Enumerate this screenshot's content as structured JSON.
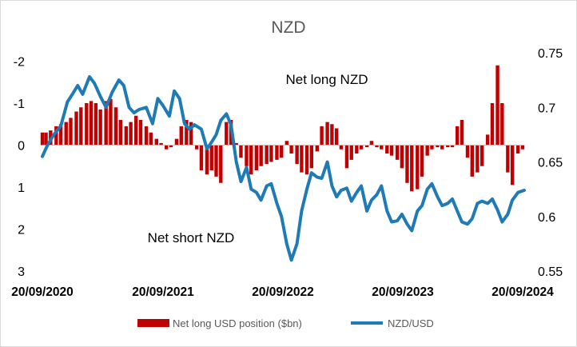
{
  "chart_data": {
    "type": "bar+line",
    "title": "NZD",
    "colors": {
      "bars": "#c00000",
      "line": "#1f7bb5",
      "text": "#000000",
      "title": "#595959"
    },
    "axes": {
      "left": {
        "range": [
          -2.2,
          3.0
        ],
        "inverted": true,
        "ticks": [
          "-2",
          "-1",
          "0",
          "1",
          "2",
          "3"
        ]
      },
      "right": {
        "range": [
          0.55,
          0.75
        ],
        "ticks": [
          "0.75",
          "0.7",
          "0.65",
          "0.6",
          "0.55"
        ]
      },
      "x": {
        "range": [
          "2020-09-20",
          "2024-09-20"
        ],
        "ticks": [
          "20/09/2020",
          "20/09/2021",
          "20/09/2022",
          "20/09/2023",
          "20/09/2024"
        ]
      }
    },
    "grid": false,
    "annotations": [
      "Net long NZD",
      "Net short NZD"
    ],
    "legend": {
      "position": "bottom",
      "entries": [
        {
          "label": "Net long USD position ($bn)",
          "kind": "bar"
        },
        {
          "label": "NZD/USD",
          "kind": "line"
        }
      ]
    },
    "series": [
      {
        "name": "Net long USD position ($bn)",
        "kind": "bar",
        "axis": "left",
        "points": [
          [
            "2020-09-20",
            -0.3
          ],
          [
            "2020-10-01",
            -0.3
          ],
          [
            "2020-10-15",
            -0.35
          ],
          [
            "2020-11-01",
            -0.45
          ],
          [
            "2020-11-15",
            -0.5
          ],
          [
            "2020-12-01",
            -0.55
          ],
          [
            "2020-12-15",
            -0.65
          ],
          [
            "2021-01-01",
            -0.8
          ],
          [
            "2021-01-15",
            -0.9
          ],
          [
            "2021-02-01",
            -1.0
          ],
          [
            "2021-02-15",
            -1.05
          ],
          [
            "2021-03-01",
            -1.0
          ],
          [
            "2021-03-15",
            -0.85
          ],
          [
            "2021-04-01",
            -1.05
          ],
          [
            "2021-04-15",
            -1.1
          ],
          [
            "2021-05-01",
            -0.9
          ],
          [
            "2021-05-15",
            -0.6
          ],
          [
            "2021-06-01",
            -0.45
          ],
          [
            "2021-06-15",
            -0.55
          ],
          [
            "2021-07-01",
            -0.7
          ],
          [
            "2021-07-15",
            -0.6
          ],
          [
            "2021-08-01",
            -0.45
          ],
          [
            "2021-08-15",
            -0.3
          ],
          [
            "2021-09-01",
            -0.15
          ],
          [
            "2021-09-15",
            -0.05
          ],
          [
            "2021-10-01",
            0.1
          ],
          [
            "2021-10-15",
            0.05
          ],
          [
            "2021-11-01",
            -0.15
          ],
          [
            "2021-11-15",
            -0.45
          ],
          [
            "2021-12-01",
            -0.6
          ],
          [
            "2021-12-15",
            -0.55
          ],
          [
            "2022-01-01",
            0.1
          ],
          [
            "2022-01-15",
            0.6
          ],
          [
            "2022-02-01",
            0.7
          ],
          [
            "2022-02-15",
            0.6
          ],
          [
            "2022-03-01",
            0.75
          ],
          [
            "2022-03-15",
            0.9
          ],
          [
            "2022-04-01",
            -0.55
          ],
          [
            "2022-04-15",
            -0.6
          ],
          [
            "2022-05-01",
            -0.05
          ],
          [
            "2022-05-15",
            0.3
          ],
          [
            "2022-06-01",
            0.5
          ],
          [
            "2022-06-15",
            0.7
          ],
          [
            "2022-07-01",
            0.6
          ],
          [
            "2022-07-15",
            0.5
          ],
          [
            "2022-08-01",
            0.45
          ],
          [
            "2022-08-15",
            0.4
          ],
          [
            "2022-09-01",
            0.35
          ],
          [
            "2022-09-15",
            0.3
          ],
          [
            "2022-10-01",
            -0.1
          ],
          [
            "2022-10-15",
            0.2
          ],
          [
            "2022-11-01",
            0.45
          ],
          [
            "2022-11-15",
            0.65
          ],
          [
            "2022-12-01",
            0.7
          ],
          [
            "2022-12-15",
            0.55
          ],
          [
            "2023-01-01",
            0.15
          ],
          [
            "2023-01-15",
            -0.45
          ],
          [
            "2023-02-01",
            -0.55
          ],
          [
            "2023-02-15",
            -0.5
          ],
          [
            "2023-03-01",
            -0.4
          ],
          [
            "2023-03-15",
            0.1
          ],
          [
            "2023-04-01",
            0.55
          ],
          [
            "2023-04-15",
            0.35
          ],
          [
            "2023-05-01",
            0.2
          ],
          [
            "2023-05-15",
            0.1
          ],
          [
            "2023-06-01",
            0.05
          ],
          [
            "2023-06-15",
            -0.1
          ],
          [
            "2023-07-01",
            0.05
          ],
          [
            "2023-07-15",
            0.1
          ],
          [
            "2023-08-01",
            0.2
          ],
          [
            "2023-08-15",
            0.25
          ],
          [
            "2023-09-01",
            0.35
          ],
          [
            "2023-09-15",
            0.55
          ],
          [
            "2023-10-01",
            0.9
          ],
          [
            "2023-10-15",
            1.1
          ],
          [
            "2023-11-01",
            1.05
          ],
          [
            "2023-11-15",
            0.75
          ],
          [
            "2023-12-01",
            0.25
          ],
          [
            "2023-12-15",
            0.1
          ],
          [
            "2024-01-01",
            0.05
          ],
          [
            "2024-01-15",
            0.1
          ],
          [
            "2024-02-01",
            0.05
          ],
          [
            "2024-02-15",
            0.05
          ],
          [
            "2024-03-01",
            -0.45
          ],
          [
            "2024-03-15",
            -0.6
          ],
          [
            "2024-04-01",
            0.3
          ],
          [
            "2024-04-15",
            0.75
          ],
          [
            "2024-05-01",
            0.65
          ],
          [
            "2024-05-15",
            0.5
          ],
          [
            "2024-06-01",
            -0.25
          ],
          [
            "2024-06-15",
            -1.0
          ],
          [
            "2024-07-01",
            -1.9
          ],
          [
            "2024-07-15",
            -1.0
          ],
          [
            "2024-08-01",
            0.65
          ],
          [
            "2024-08-15",
            0.95
          ],
          [
            "2024-09-01",
            0.2
          ],
          [
            "2024-09-15",
            0.1
          ]
        ]
      },
      {
        "name": "NZD/USD",
        "kind": "line",
        "axis": "right",
        "points": [
          [
            "2020-09-20",
            0.655
          ],
          [
            "2020-10-05",
            0.665
          ],
          [
            "2020-10-25",
            0.675
          ],
          [
            "2020-11-15",
            0.683
          ],
          [
            "2020-12-05",
            0.705
          ],
          [
            "2020-12-20",
            0.712
          ],
          [
            "2021-01-05",
            0.72
          ],
          [
            "2021-01-20",
            0.712
          ],
          [
            "2021-02-10",
            0.728
          ],
          [
            "2021-02-25",
            0.722
          ],
          [
            "2021-03-15",
            0.71
          ],
          [
            "2021-04-01",
            0.7
          ],
          [
            "2021-04-20",
            0.714
          ],
          [
            "2021-05-10",
            0.725
          ],
          [
            "2021-05-25",
            0.72
          ],
          [
            "2021-06-10",
            0.7
          ],
          [
            "2021-06-25",
            0.695
          ],
          [
            "2021-07-10",
            0.698
          ],
          [
            "2021-08-01",
            0.7
          ],
          [
            "2021-08-20",
            0.685
          ],
          [
            "2021-09-05",
            0.708
          ],
          [
            "2021-09-20",
            0.702
          ],
          [
            "2021-10-10",
            0.692
          ],
          [
            "2021-10-25",
            0.715
          ],
          [
            "2021-11-10",
            0.708
          ],
          [
            "2021-11-25",
            0.685
          ],
          [
            "2021-12-10",
            0.68
          ],
          [
            "2021-12-25",
            0.684
          ],
          [
            "2022-01-15",
            0.68
          ],
          [
            "2022-02-01",
            0.662
          ],
          [
            "2022-02-15",
            0.668
          ],
          [
            "2022-03-01",
            0.675
          ],
          [
            "2022-03-15",
            0.688
          ],
          [
            "2022-04-01",
            0.694
          ],
          [
            "2022-04-15",
            0.684
          ],
          [
            "2022-05-01",
            0.65
          ],
          [
            "2022-05-15",
            0.632
          ],
          [
            "2022-06-01",
            0.645
          ],
          [
            "2022-06-15",
            0.625
          ],
          [
            "2022-07-01",
            0.622
          ],
          [
            "2022-07-15",
            0.615
          ],
          [
            "2022-08-01",
            0.628
          ],
          [
            "2022-08-15",
            0.63
          ],
          [
            "2022-09-01",
            0.612
          ],
          [
            "2022-09-15",
            0.6
          ],
          [
            "2022-10-01",
            0.575
          ],
          [
            "2022-10-15",
            0.56
          ],
          [
            "2022-11-01",
            0.575
          ],
          [
            "2022-11-15",
            0.605
          ],
          [
            "2022-12-01",
            0.625
          ],
          [
            "2022-12-15",
            0.64
          ],
          [
            "2023-01-01",
            0.636
          ],
          [
            "2023-01-15",
            0.635
          ],
          [
            "2023-02-01",
            0.65
          ],
          [
            "2023-02-15",
            0.628
          ],
          [
            "2023-03-01",
            0.618
          ],
          [
            "2023-03-15",
            0.624
          ],
          [
            "2023-04-01",
            0.626
          ],
          [
            "2023-04-15",
            0.614
          ],
          [
            "2023-05-01",
            0.622
          ],
          [
            "2023-05-15",
            0.628
          ],
          [
            "2023-06-01",
            0.605
          ],
          [
            "2023-06-15",
            0.615
          ],
          [
            "2023-07-01",
            0.62
          ],
          [
            "2023-07-15",
            0.628
          ],
          [
            "2023-08-01",
            0.605
          ],
          [
            "2023-08-15",
            0.595
          ],
          [
            "2023-09-01",
            0.596
          ],
          [
            "2023-09-15",
            0.602
          ],
          [
            "2023-10-01",
            0.593
          ],
          [
            "2023-10-15",
            0.587
          ],
          [
            "2023-11-01",
            0.605
          ],
          [
            "2023-11-15",
            0.61
          ],
          [
            "2023-12-01",
            0.625
          ],
          [
            "2023-12-15",
            0.63
          ],
          [
            "2024-01-01",
            0.618
          ],
          [
            "2024-01-15",
            0.61
          ],
          [
            "2024-02-01",
            0.612
          ],
          [
            "2024-02-15",
            0.616
          ],
          [
            "2024-03-01",
            0.605
          ],
          [
            "2024-03-15",
            0.595
          ],
          [
            "2024-04-01",
            0.593
          ],
          [
            "2024-04-15",
            0.598
          ],
          [
            "2024-05-01",
            0.612
          ],
          [
            "2024-05-15",
            0.614
          ],
          [
            "2024-06-01",
            0.612
          ],
          [
            "2024-06-15",
            0.616
          ],
          [
            "2024-07-01",
            0.606
          ],
          [
            "2024-07-15",
            0.595
          ],
          [
            "2024-08-01",
            0.602
          ],
          [
            "2024-08-15",
            0.615
          ],
          [
            "2024-09-01",
            0.622
          ],
          [
            "2024-09-20",
            0.624
          ]
        ]
      }
    ]
  }
}
